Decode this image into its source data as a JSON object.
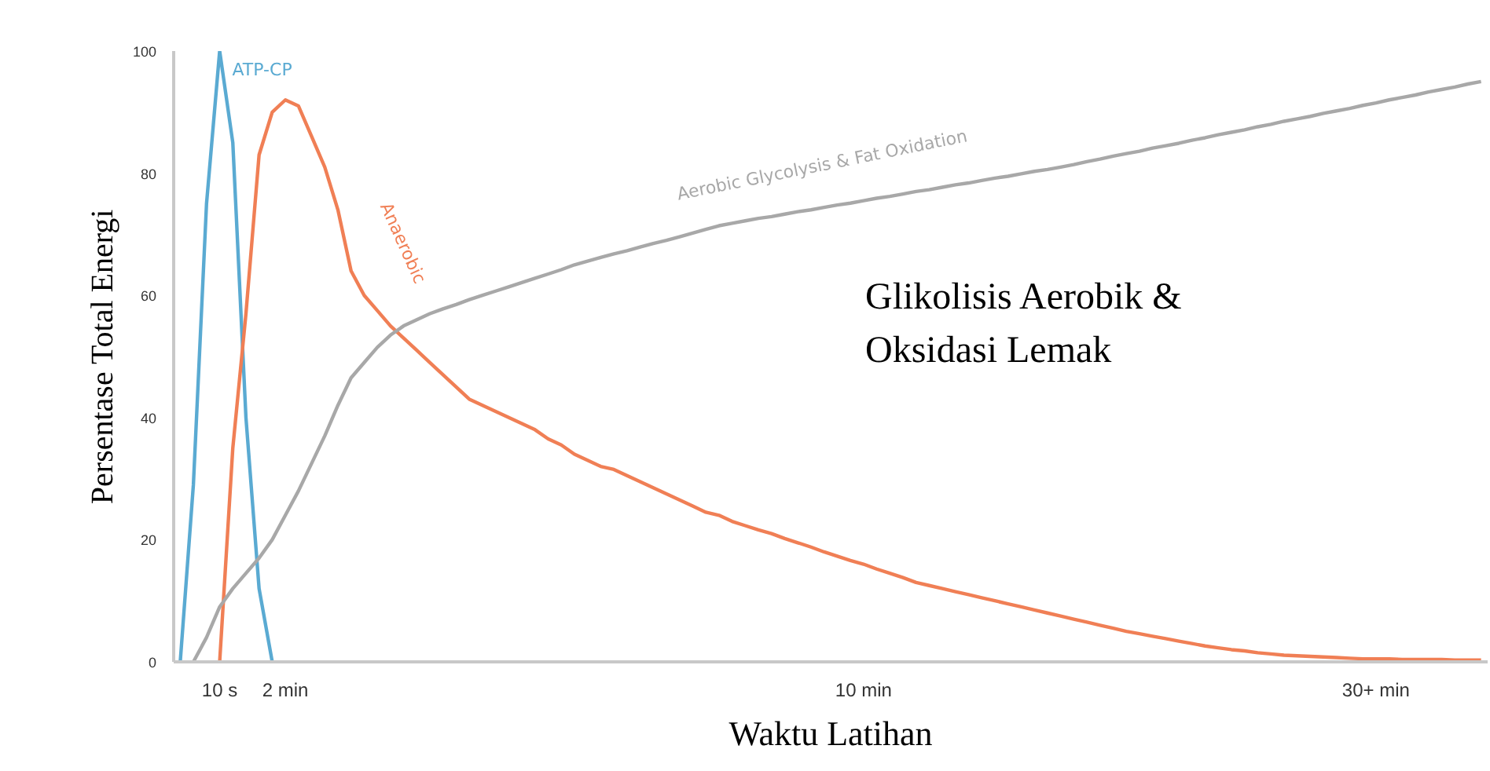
{
  "chart_data": {
    "type": "line",
    "xlabel": "Waktu Latihan",
    "ylabel": "Persentase Total Energi",
    "ylim": [
      0,
      100
    ],
    "yticks": [
      0,
      20,
      40,
      60,
      80,
      100
    ],
    "grid": false,
    "legend": false,
    "marker": "none",
    "line_style": "solid",
    "categories": [
      null,
      null,
      null,
      "10 s",
      null,
      null,
      null,
      null,
      "2 min",
      null,
      null,
      null,
      null,
      null,
      null,
      null,
      null,
      null,
      null,
      null,
      null,
      null,
      null,
      null,
      null,
      null,
      null,
      null,
      null,
      null,
      null,
      null,
      null,
      null,
      null,
      null,
      null,
      null,
      null,
      null,
      null,
      null,
      null,
      null,
      null,
      null,
      null,
      null,
      null,
      null,
      null,
      null,
      "10 min",
      null,
      null,
      null,
      null,
      null,
      null,
      null,
      null,
      null,
      null,
      null,
      null,
      null,
      null,
      null,
      null,
      null,
      null,
      null,
      null,
      null,
      null,
      null,
      null,
      null,
      null,
      null,
      null,
      null,
      null,
      null,
      null,
      null,
      null,
      null,
      null,
      null,
      null,
      "30+ min",
      null,
      null,
      null,
      null,
      null,
      null,
      null,
      null
    ],
    "series": [
      {
        "name": "ATP-CP",
        "color": "#5aaad2",
        "values": [
          0,
          29,
          75,
          100,
          85,
          40,
          12,
          0,
          null,
          null,
          null,
          null,
          null,
          null,
          null,
          null,
          null,
          null,
          null,
          null,
          null,
          null,
          null,
          null,
          null,
          null,
          null,
          null,
          null,
          null,
          null,
          null,
          null,
          null,
          null,
          null,
          null,
          null,
          null,
          null,
          null,
          null,
          null,
          null,
          null,
          null,
          null,
          null,
          null,
          null,
          null,
          null,
          null,
          null,
          null,
          null,
          null,
          null,
          null,
          null,
          null,
          null,
          null,
          null,
          null,
          null,
          null,
          null,
          null,
          null,
          null,
          null,
          null,
          null,
          null,
          null,
          null,
          null,
          null,
          null,
          null,
          null,
          null,
          null,
          null,
          null,
          null,
          null,
          null,
          null,
          null,
          null,
          null,
          null,
          null,
          null,
          null,
          null,
          null,
          null
        ]
      },
      {
        "name": "Anaerobic",
        "color": "#f07f55",
        "values": [
          null,
          null,
          null,
          0,
          35,
          57,
          83,
          90,
          92,
          91,
          86,
          81,
          74,
          64,
          60,
          57.5,
          55,
          53,
          51,
          49,
          47,
          45,
          43,
          42,
          41,
          40,
          39,
          38,
          36.5,
          35.5,
          34,
          33,
          32,
          31.5,
          30.5,
          29.5,
          28.5,
          27.5,
          26.5,
          25.5,
          24.5,
          24,
          23,
          22.3,
          21.6,
          21,
          20.2,
          19.5,
          18.8,
          18,
          17.3,
          16.6,
          16,
          15.2,
          14.5,
          13.8,
          13,
          12.5,
          12,
          11.5,
          11,
          10.5,
          10,
          9.5,
          9,
          8.5,
          8,
          7.5,
          7,
          6.5,
          6,
          5.5,
          5,
          4.6,
          4.2,
          3.8,
          3.4,
          3,
          2.6,
          2.3,
          2,
          1.8,
          1.5,
          1.3,
          1.1,
          1,
          0.9,
          0.8,
          0.7,
          0.6,
          0.5,
          0.5,
          0.5,
          0.4,
          0.4,
          0.4,
          0.4,
          0.3,
          0.3,
          0.3
        ]
      },
      {
        "name": "Aerobic Glycolysis & Fat Oxidation",
        "color": "#a8a8a8",
        "values": [
          null,
          0,
          4,
          9,
          12,
          14.5,
          17,
          20,
          24,
          28,
          32.5,
          37,
          42,
          46.5,
          49,
          51.5,
          53.5,
          55,
          56,
          57,
          57.8,
          58.5,
          59.3,
          60,
          60.7,
          61.4,
          62.1,
          62.8,
          63.5,
          64.2,
          65,
          65.6,
          66.2,
          66.8,
          67.3,
          67.9,
          68.5,
          69,
          69.6,
          70.2,
          70.8,
          71.4,
          71.8,
          72.2,
          72.6,
          72.9,
          73.3,
          73.7,
          74,
          74.4,
          74.8,
          75.1,
          75.5,
          75.9,
          76.2,
          76.6,
          77,
          77.3,
          77.7,
          78.1,
          78.4,
          78.8,
          79.2,
          79.5,
          79.9,
          80.3,
          80.6,
          81,
          81.4,
          81.9,
          82.3,
          82.8,
          83.2,
          83.6,
          84.1,
          84.5,
          84.9,
          85.4,
          85.8,
          86.3,
          86.7,
          87.1,
          87.6,
          88,
          88.5,
          88.9,
          89.3,
          89.8,
          90.2,
          90.6,
          91.1,
          91.5,
          92,
          92.4,
          92.8,
          93.3,
          93.7,
          94.1,
          94.6,
          95
        ]
      }
    ],
    "annotations": [
      "Glikolisis Aerobik & Oksidasi Lemak"
    ]
  }
}
